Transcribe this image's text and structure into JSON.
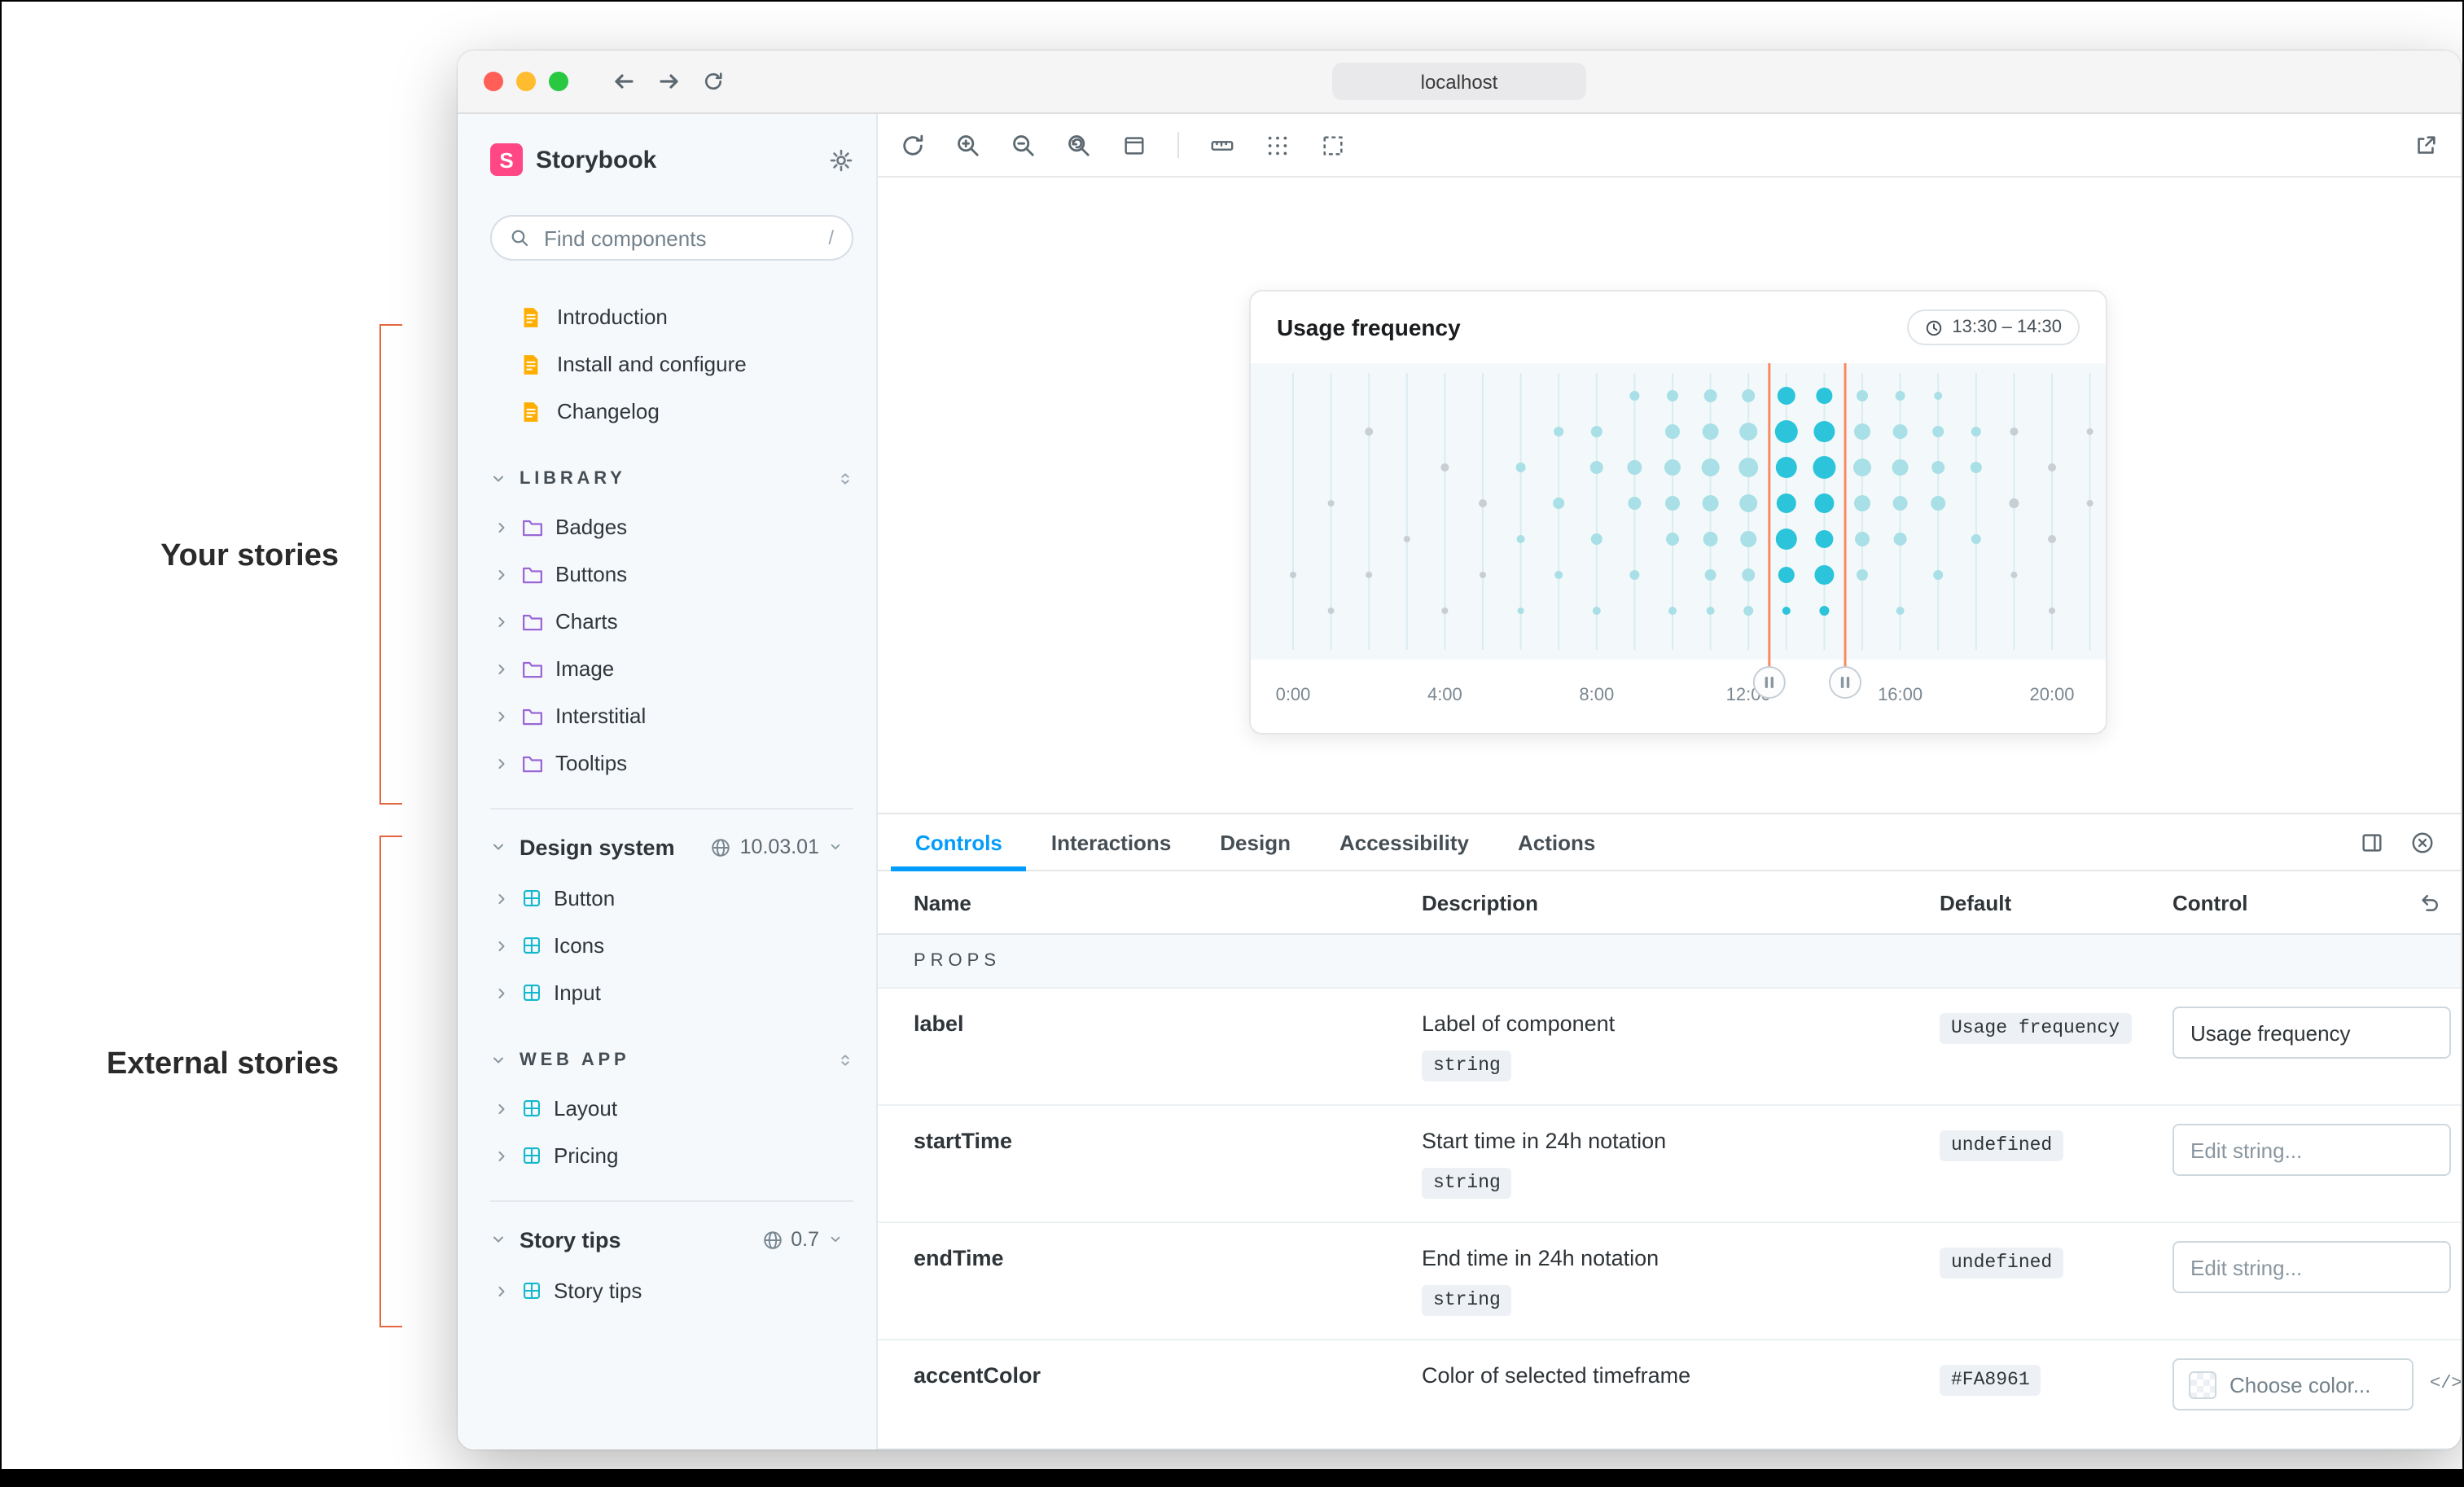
{
  "annotations": {
    "left_top": "Your stories",
    "left_bottom": "External stories"
  },
  "browser": {
    "address": "localhost"
  },
  "sidebar": {
    "brand": "Storybook",
    "logo_letter": "S",
    "search": {
      "placeholder": "Find components",
      "shortcut": "/"
    },
    "docs": [
      {
        "label": "Introduction"
      },
      {
        "label": "Install and configure"
      },
      {
        "label": "Changelog"
      }
    ],
    "library": {
      "label": "LIBRARY",
      "items": [
        {
          "label": "Badges"
        },
        {
          "label": "Buttons"
        },
        {
          "label": "Charts"
        },
        {
          "label": "Image"
        },
        {
          "label": "Interstitial"
        },
        {
          "label": "Tooltips"
        }
      ]
    },
    "design_system": {
      "label": "Design system",
      "version": "10.03.01",
      "items": [
        {
          "label": "Button"
        },
        {
          "label": "Icons"
        },
        {
          "label": "Input"
        }
      ]
    },
    "web_app": {
      "label": "WEB APP",
      "items": [
        {
          "label": "Layout"
        },
        {
          "label": "Pricing"
        }
      ]
    },
    "story_tips": {
      "label": "Story tips",
      "version": "0.7",
      "items": [
        {
          "label": "Story tips"
        }
      ]
    }
  },
  "card": {
    "title": "Usage frequency",
    "time_range": "13:30 – 14:30"
  },
  "chart_data": {
    "type": "bubble",
    "title": "Usage frequency",
    "x_tick_labels": [
      "0:00",
      "4:00",
      "8:00",
      "12:00",
      "16:00",
      "20:00"
    ],
    "x_tick_hours": [
      0,
      4,
      8,
      12,
      16,
      20
    ],
    "hours": [
      0,
      21
    ],
    "selection": {
      "label": "13:30 – 14:30",
      "start_hour": 12.55,
      "end_hour": 14.55,
      "color": "#FA8961"
    },
    "colors": {
      "grid": "#D9EDF0",
      "bright": "#2BC4DB",
      "light": "#A9DFE6",
      "muted": "#C7CFD4"
    },
    "columns": [
      {
        "hour": 0,
        "dots": [
          {
            "row": 5,
            "r": 2,
            "tone": "muted"
          }
        ]
      },
      {
        "hour": 1,
        "dots": [
          {
            "row": 3,
            "r": 2,
            "tone": "muted"
          },
          {
            "row": 6,
            "r": 2,
            "tone": "muted"
          }
        ]
      },
      {
        "hour": 2,
        "dots": [
          {
            "row": 1,
            "r": 2.5,
            "tone": "muted"
          },
          {
            "row": 5,
            "r": 2,
            "tone": "muted"
          }
        ]
      },
      {
        "hour": 3,
        "dots": [
          {
            "row": 4,
            "r": 2,
            "tone": "muted"
          }
        ]
      },
      {
        "hour": 4,
        "dots": [
          {
            "row": 2,
            "r": 2.5,
            "tone": "muted"
          },
          {
            "row": 6,
            "r": 2,
            "tone": "muted"
          }
        ]
      },
      {
        "hour": 5,
        "dots": [
          {
            "row": 3,
            "r": 2.5,
            "tone": "muted"
          },
          {
            "row": 5,
            "r": 2,
            "tone": "muted"
          }
        ]
      },
      {
        "hour": 6,
        "dots": [
          {
            "row": 2,
            "r": 3,
            "tone": "light"
          },
          {
            "row": 4,
            "r": 2.5,
            "tone": "light"
          },
          {
            "row": 6,
            "r": 2,
            "tone": "light"
          }
        ]
      },
      {
        "hour": 7,
        "dots": [
          {
            "row": 1,
            "r": 3,
            "tone": "light"
          },
          {
            "row": 3,
            "r": 3.5,
            "tone": "light"
          },
          {
            "row": 5,
            "r": 2.5,
            "tone": "light"
          }
        ]
      },
      {
        "hour": 8,
        "dots": [
          {
            "row": 1,
            "r": 3.5,
            "tone": "light"
          },
          {
            "row": 2,
            "r": 4,
            "tone": "light"
          },
          {
            "row": 4,
            "r": 3.5,
            "tone": "light"
          },
          {
            "row": 6,
            "r": 2.5,
            "tone": "light"
          }
        ]
      },
      {
        "hour": 9,
        "dots": [
          {
            "row": 0,
            "r": 3,
            "tone": "light"
          },
          {
            "row": 2,
            "r": 4.5,
            "tone": "light"
          },
          {
            "row": 3,
            "r": 4,
            "tone": "light"
          },
          {
            "row": 5,
            "r": 3,
            "tone": "light"
          }
        ]
      },
      {
        "hour": 10,
        "dots": [
          {
            "row": 0,
            "r": 3.5,
            "tone": "light"
          },
          {
            "row": 1,
            "r": 4.5,
            "tone": "light"
          },
          {
            "row": 2,
            "r": 5,
            "tone": "light"
          },
          {
            "row": 3,
            "r": 4.5,
            "tone": "light"
          },
          {
            "row": 4,
            "r": 4,
            "tone": "light"
          },
          {
            "row": 6,
            "r": 2.5,
            "tone": "light"
          }
        ]
      },
      {
        "hour": 11,
        "dots": [
          {
            "row": 0,
            "r": 4,
            "tone": "light"
          },
          {
            "row": 1,
            "r": 5,
            "tone": "light"
          },
          {
            "row": 2,
            "r": 5.5,
            "tone": "light"
          },
          {
            "row": 3,
            "r": 5,
            "tone": "light"
          },
          {
            "row": 4,
            "r": 4.5,
            "tone": "light"
          },
          {
            "row": 5,
            "r": 3.5,
            "tone": "light"
          },
          {
            "row": 6,
            "r": 2.5,
            "tone": "light"
          }
        ]
      },
      {
        "hour": 12,
        "dots": [
          {
            "row": 0,
            "r": 4,
            "tone": "light"
          },
          {
            "row": 1,
            "r": 5.5,
            "tone": "light"
          },
          {
            "row": 2,
            "r": 6,
            "tone": "light"
          },
          {
            "row": 3,
            "r": 5.5,
            "tone": "light"
          },
          {
            "row": 4,
            "r": 5,
            "tone": "light"
          },
          {
            "row": 5,
            "r": 4,
            "tone": "light"
          },
          {
            "row": 6,
            "r": 3,
            "tone": "light"
          }
        ]
      },
      {
        "hour": 13,
        "dots": [
          {
            "row": 0,
            "r": 5.5,
            "tone": "bright"
          },
          {
            "row": 1,
            "r": 7,
            "tone": "bright"
          },
          {
            "row": 2,
            "r": 6.5,
            "tone": "bright"
          },
          {
            "row": 3,
            "r": 6,
            "tone": "bright"
          },
          {
            "row": 4,
            "r": 6.5,
            "tone": "bright"
          },
          {
            "row": 5,
            "r": 5,
            "tone": "bright"
          },
          {
            "row": 6,
            "r": 2.5,
            "tone": "bright"
          }
        ]
      },
      {
        "hour": 14,
        "dots": [
          {
            "row": 0,
            "r": 5,
            "tone": "bright"
          },
          {
            "row": 1,
            "r": 6.5,
            "tone": "bright"
          },
          {
            "row": 2,
            "r": 7,
            "tone": "bright"
          },
          {
            "row": 3,
            "r": 6,
            "tone": "bright"
          },
          {
            "row": 4,
            "r": 5.5,
            "tone": "bright"
          },
          {
            "row": 5,
            "r": 6,
            "tone": "bright"
          },
          {
            "row": 6,
            "r": 3,
            "tone": "bright"
          }
        ]
      },
      {
        "hour": 15,
        "dots": [
          {
            "row": 0,
            "r": 3.5,
            "tone": "light"
          },
          {
            "row": 1,
            "r": 5,
            "tone": "light"
          },
          {
            "row": 2,
            "r": 5.5,
            "tone": "light"
          },
          {
            "row": 3,
            "r": 5,
            "tone": "light"
          },
          {
            "row": 4,
            "r": 4.5,
            "tone": "light"
          },
          {
            "row": 5,
            "r": 3.5,
            "tone": "light"
          }
        ]
      },
      {
        "hour": 16,
        "dots": [
          {
            "row": 0,
            "r": 3,
            "tone": "light"
          },
          {
            "row": 1,
            "r": 4.5,
            "tone": "light"
          },
          {
            "row": 2,
            "r": 5,
            "tone": "light"
          },
          {
            "row": 3,
            "r": 4.5,
            "tone": "light"
          },
          {
            "row": 4,
            "r": 4,
            "tone": "light"
          },
          {
            "row": 6,
            "r": 2.5,
            "tone": "light"
          }
        ]
      },
      {
        "hour": 17,
        "dots": [
          {
            "row": 0,
            "r": 2.5,
            "tone": "light"
          },
          {
            "row": 1,
            "r": 3.5,
            "tone": "light"
          },
          {
            "row": 2,
            "r": 4,
            "tone": "light"
          },
          {
            "row": 3,
            "r": 4.5,
            "tone": "light"
          },
          {
            "row": 5,
            "r": 3,
            "tone": "light"
          }
        ]
      },
      {
        "hour": 18,
        "dots": [
          {
            "row": 1,
            "r": 3,
            "tone": "light"
          },
          {
            "row": 2,
            "r": 3.5,
            "tone": "light"
          },
          {
            "row": 4,
            "r": 3,
            "tone": "light"
          }
        ]
      },
      {
        "hour": 19,
        "dots": [
          {
            "row": 1,
            "r": 2.5,
            "tone": "muted"
          },
          {
            "row": 3,
            "r": 3,
            "tone": "muted"
          },
          {
            "row": 5,
            "r": 2,
            "tone": "muted"
          }
        ]
      },
      {
        "hour": 20,
        "dots": [
          {
            "row": 2,
            "r": 2.5,
            "tone": "muted"
          },
          {
            "row": 4,
            "r": 2.5,
            "tone": "muted"
          },
          {
            "row": 6,
            "r": 2,
            "tone": "muted"
          }
        ]
      },
      {
        "hour": 21,
        "dots": [
          {
            "row": 1,
            "r": 2,
            "tone": "muted"
          },
          {
            "row": 3,
            "r": 2,
            "tone": "muted"
          }
        ]
      }
    ]
  },
  "panel": {
    "tabs": [
      {
        "label": "Controls"
      },
      {
        "label": "Interactions"
      },
      {
        "label": "Design"
      },
      {
        "label": "Accessibility"
      },
      {
        "label": "Actions"
      }
    ],
    "active_tab": "Controls",
    "accent_color": "#029CFD",
    "table": {
      "headers": {
        "name": "Name",
        "description": "Description",
        "default": "Default",
        "control": "Control"
      },
      "section_label": "PROPS",
      "rows": [
        {
          "name": "label",
          "description": "Label of component",
          "type": "string",
          "default": "Usage frequency",
          "control_value": "Usage frequency"
        },
        {
          "name": "startTime",
          "description": "Start time in 24h notation",
          "type": "string",
          "default": "undefined",
          "control_placeholder": "Edit string..."
        },
        {
          "name": "endTime",
          "description": "End time in 24h notation",
          "type": "string",
          "default": "undefined",
          "control_placeholder": "Edit string..."
        },
        {
          "name": "accentColor",
          "description": "Color of selected timeframe",
          "default": "#FA8961",
          "control_label": "Choose color...",
          "code_icon": "</>"
        }
      ]
    }
  }
}
